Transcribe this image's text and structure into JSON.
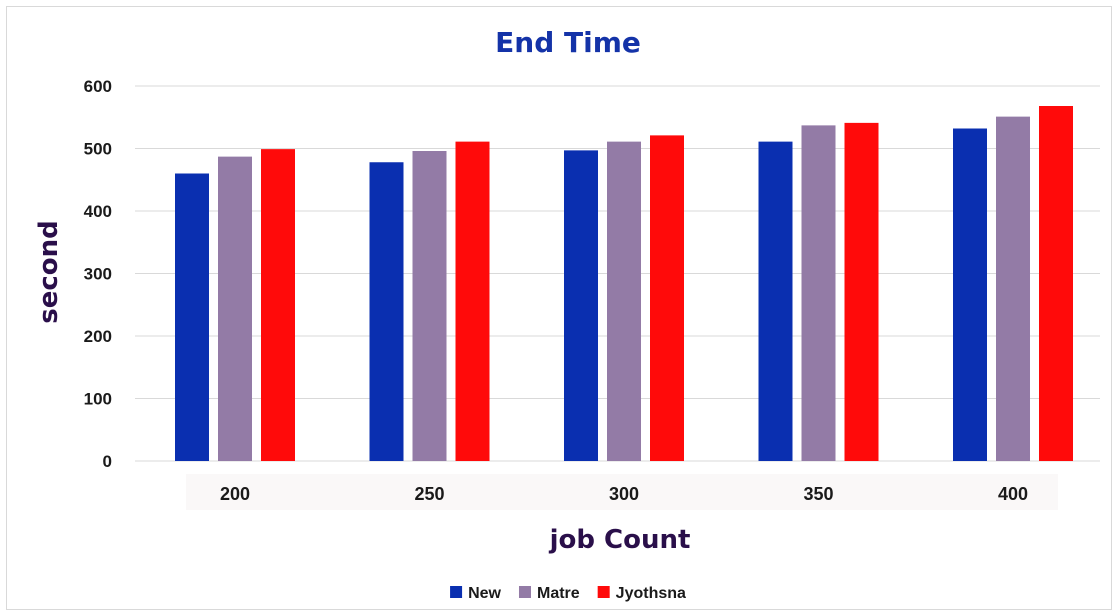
{
  "chart_data": {
    "type": "bar",
    "title": "End Time",
    "xlabel": "job Count",
    "ylabel": "second",
    "categories": [
      "200",
      "250",
      "300",
      "350",
      "400"
    ],
    "ylim": [
      0,
      600
    ],
    "yticks": [
      "0",
      "100",
      "200",
      "300",
      "400",
      "500",
      "600"
    ],
    "grid": true,
    "legend_position": "bottom",
    "series": [
      {
        "name": "New",
        "color": "#0a2fb0",
        "values": [
          460,
          478,
          497,
          511,
          532
        ]
      },
      {
        "name": "Matre",
        "color": "#937ba6",
        "values": [
          487,
          496,
          511,
          537,
          551
        ]
      },
      {
        "name": "Jyothsna",
        "color": "#ff0a0a",
        "values": [
          499,
          511,
          521,
          541,
          568
        ]
      }
    ]
  }
}
